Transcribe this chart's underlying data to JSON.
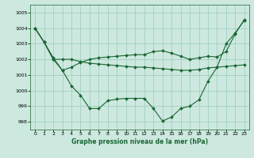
{
  "background_color": "#cce8df",
  "grid_color": "#99ccbb",
  "line_color": "#1a6632",
  "title": "Graphe pression niveau de la mer (hPa)",
  "xlim": [
    -0.5,
    23.5
  ],
  "ylim": [
    997.5,
    1005.5
  ],
  "yticks": [
    998,
    999,
    1000,
    1001,
    1002,
    1003,
    1004,
    1005
  ],
  "xticks": [
    0,
    1,
    2,
    3,
    4,
    5,
    6,
    7,
    8,
    9,
    10,
    11,
    12,
    13,
    14,
    15,
    16,
    17,
    18,
    19,
    20,
    21,
    22,
    23
  ],
  "lines": [
    [
      1004.0,
      1003.1,
      1002.1,
      1001.3,
      1000.3,
      999.7,
      998.85,
      998.85,
      999.35,
      999.45,
      999.5,
      999.5,
      999.5,
      998.85,
      998.05,
      998.3,
      998.85,
      999.0,
      999.4,
      1000.6,
      1001.5,
      1003.0,
      1003.7,
      1004.5
    ],
    [
      1004.0,
      1003.1,
      1002.0,
      1002.0,
      1002.0,
      1001.85,
      1001.75,
      1001.7,
      1001.65,
      1001.6,
      1001.55,
      1001.5,
      1001.5,
      1001.45,
      1001.4,
      1001.35,
      1001.3,
      1001.3,
      1001.35,
      1001.45,
      1001.5,
      1001.55,
      1001.6,
      1001.65
    ],
    [
      1004.0,
      1003.1,
      1002.0,
      1001.3,
      1001.5,
      1001.8,
      1002.0,
      1002.1,
      1002.15,
      1002.2,
      1002.25,
      1002.3,
      1002.3,
      1002.5,
      1002.55,
      1002.4,
      1002.2,
      1002.0,
      1002.1,
      1002.2,
      1002.15,
      1002.5,
      1003.65,
      1004.55
    ]
  ]
}
